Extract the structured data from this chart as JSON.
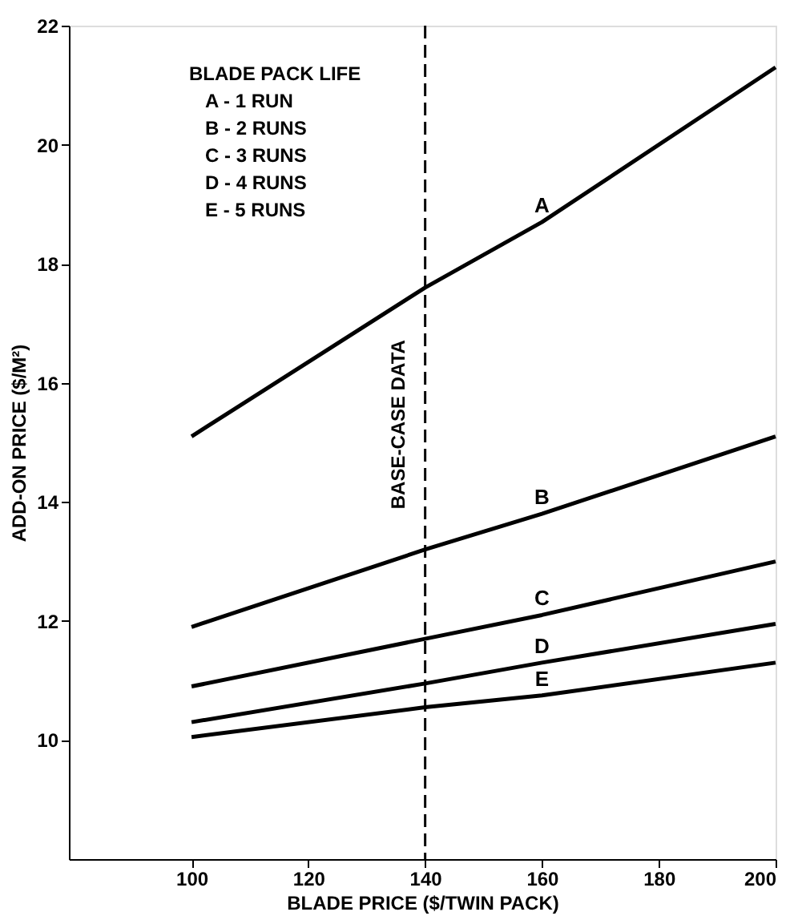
{
  "chart_data": {
    "type": "line",
    "xlabel": "BLADE PRICE ($/TWIN PACK)",
    "ylabel": "ADD-ON PRICE ($/M²)",
    "xlim": [
      79,
      200
    ],
    "xticks": [
      100,
      120,
      140,
      160,
      180,
      {
        "value": 200,
        "label": "200"
      }
    ],
    "ylim": [
      8,
      22
    ],
    "yticks": [
      10,
      12,
      14,
      16,
      18,
      20,
      22
    ],
    "grid": false,
    "marker": "none",
    "line_style": "solid",
    "series": [
      {
        "name": "A",
        "color": "#000000",
        "x": [
          100,
          140,
          160,
          200
        ],
        "values": [
          15.1,
          17.6,
          18.7,
          21.3
        ]
      },
      {
        "name": "B",
        "color": "#000000",
        "x": [
          100,
          140,
          160,
          200
        ],
        "values": [
          11.9,
          13.2,
          13.8,
          15.1
        ]
      },
      {
        "name": "C",
        "color": "#000000",
        "x": [
          100,
          140,
          160,
          200
        ],
        "values": [
          10.9,
          11.7,
          12.1,
          13.0
        ]
      },
      {
        "name": "D",
        "color": "#000000",
        "x": [
          100,
          140,
          160,
          200
        ],
        "values": [
          10.3,
          10.95,
          11.3,
          11.95
        ]
      },
      {
        "name": "E",
        "color": "#000000",
        "x": [
          100,
          140,
          160,
          200
        ],
        "values": [
          10.05,
          10.55,
          10.75,
          11.3
        ]
      }
    ],
    "ref_lines": [
      {
        "axis": "x",
        "value": 140,
        "label": "BASE-CASE DATA",
        "line_style": "dashed",
        "color": "#000000"
      }
    ],
    "annotations": [
      "BLADE PACK LIFE",
      "A - 1 RUN",
      "B - 2 RUNS",
      "C - 3 RUNS",
      "D - 4 RUNS",
      "E - 5 RUNS"
    ]
  }
}
